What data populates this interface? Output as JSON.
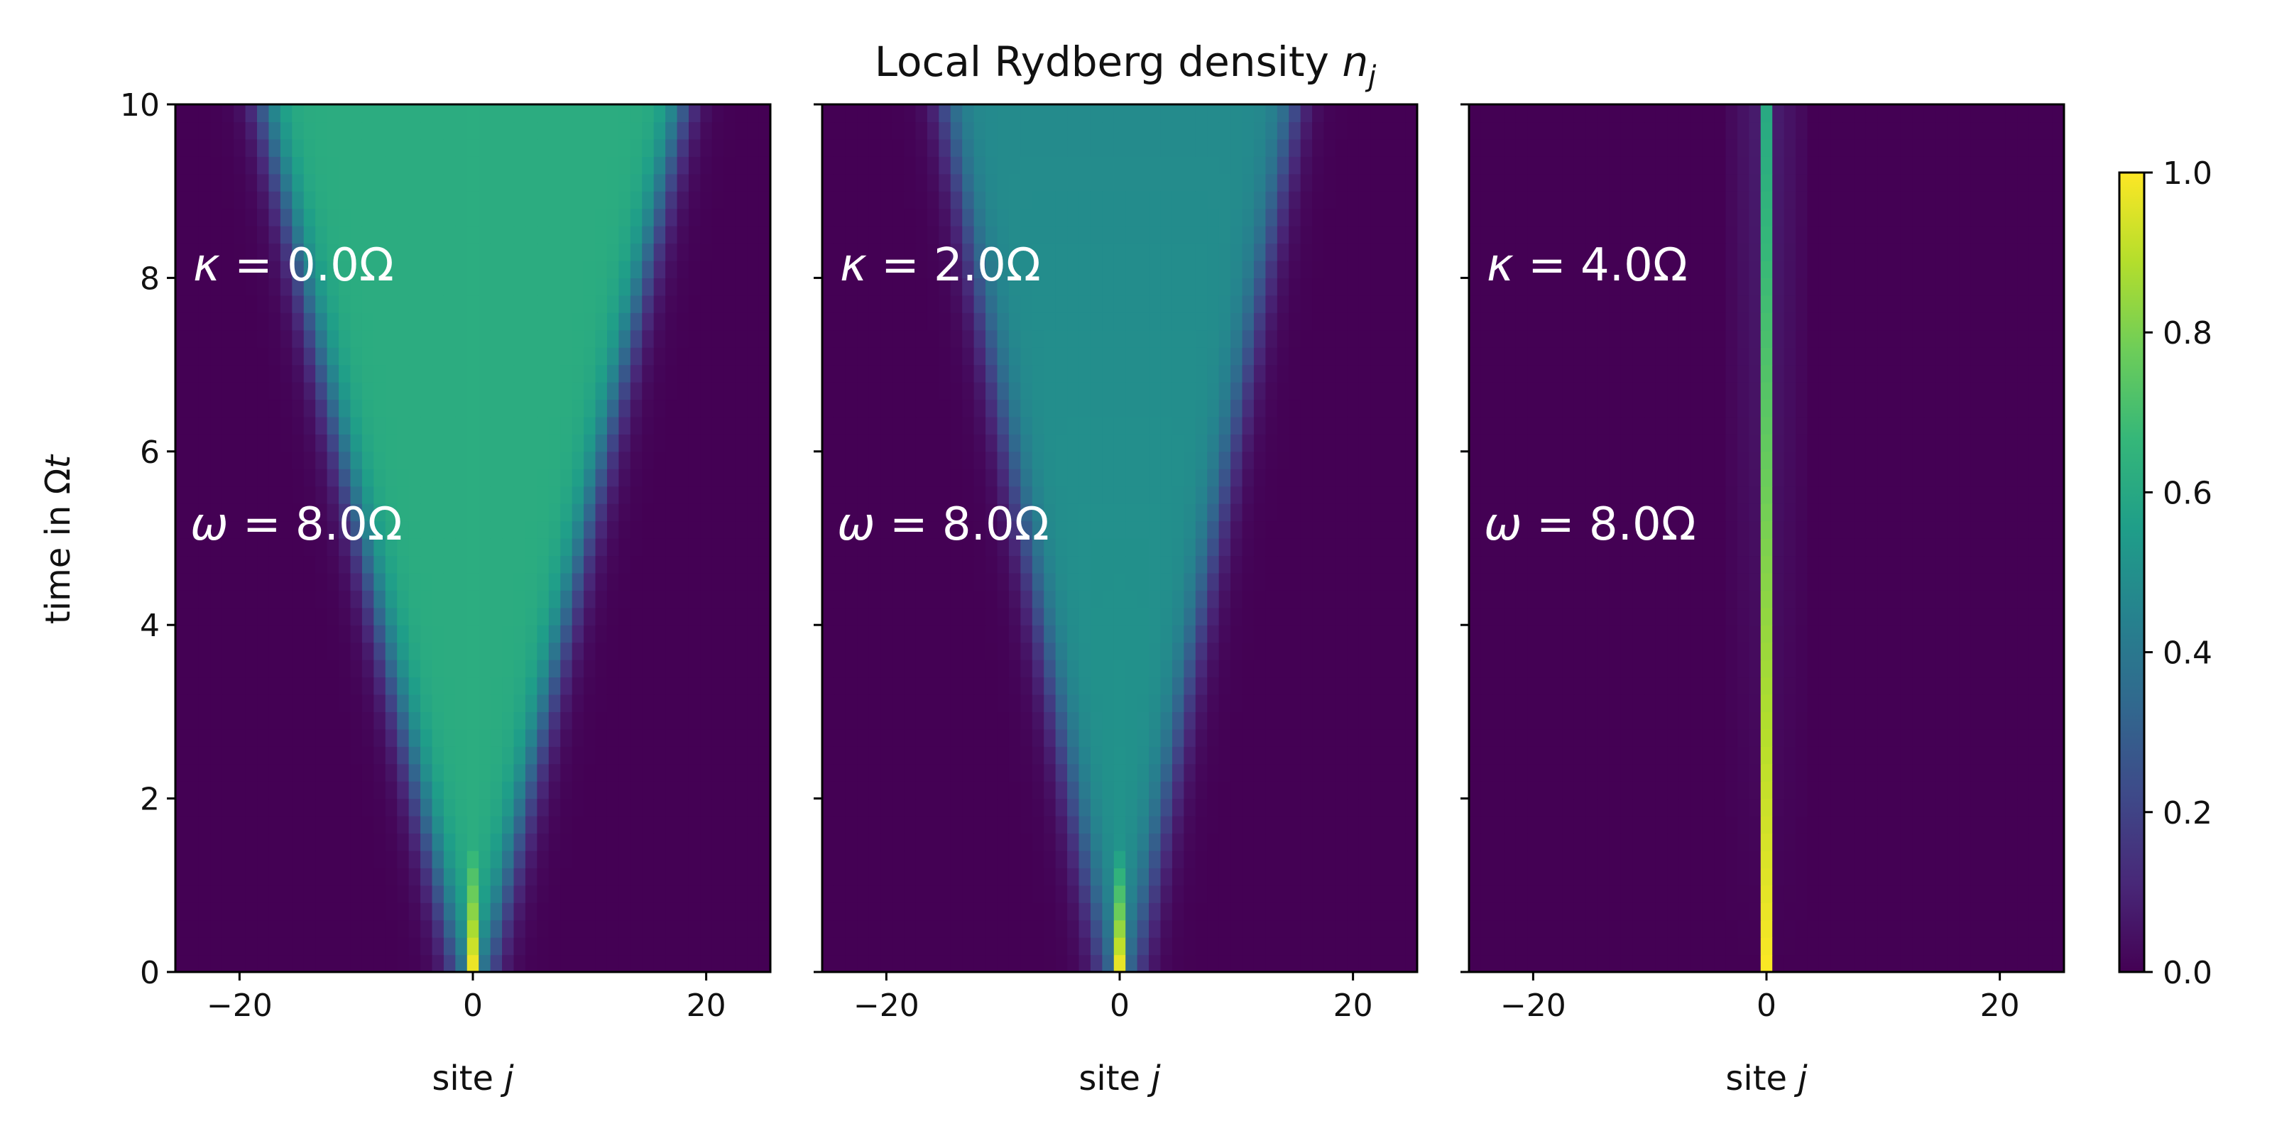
{
  "chart_data": {
    "type": "heatmap",
    "title": {
      "text": "Local Rydberg density ",
      "var": "n",
      "sub": "j"
    },
    "ylabel": {
      "text": "time in Ω",
      "var": "t"
    },
    "xlim": [
      -25.5,
      25.5
    ],
    "ylim": [
      0,
      10
    ],
    "xticks": [
      -20,
      0,
      20
    ],
    "xtick_labels": [
      "−20",
      "0",
      "20"
    ],
    "yticks": [
      0,
      2,
      4,
      6,
      8,
      10
    ],
    "ytick_labels": [
      "0",
      "2",
      "4",
      "6",
      "8",
      "10"
    ],
    "sites": {
      "min": -25,
      "max": 25
    },
    "time_steps": 50,
    "colormap": "viridis",
    "colorbar": {
      "range": [
        0.0,
        1.0
      ],
      "ticks": [
        0.0,
        0.2,
        0.4,
        0.6,
        0.8,
        1.0
      ],
      "tick_labels": [
        "0.0",
        "0.2",
        "0.4",
        "0.6",
        "0.8",
        "1.0"
      ]
    },
    "panels": [
      {
        "xlabel": {
          "text": "site ",
          "var": "j"
        },
        "kappa_label": {
          "sym": "κ",
          "rest": " = 0.0Ω"
        },
        "omega_label": {
          "sym": "ω",
          "rest": " = 8.0Ω"
        },
        "kappa": 0.0,
        "omega": 8.0,
        "cone_half_width_at_t10": 18,
        "plateau_density": 0.62,
        "center_density_t0": 1.0
      },
      {
        "xlabel": {
          "text": "site ",
          "var": "j"
        },
        "kappa_label": {
          "sym": "κ",
          "rest": " = 2.0Ω"
        },
        "omega_label": {
          "sym": "ω",
          "rest": " = 8.0Ω"
        },
        "kappa": 2.0,
        "omega": 8.0,
        "cone_half_width_at_t10": 15,
        "plateau_density": 0.52,
        "center_density_t0": 1.0
      },
      {
        "xlabel": {
          "text": "site ",
          "var": "j"
        },
        "kappa_label": {
          "sym": "κ",
          "rest": " = 4.0Ω"
        },
        "omega_label": {
          "sym": "ω",
          "rest": " = 8.0Ω"
        },
        "kappa": 4.0,
        "omega": 8.0,
        "cone_half_width_at_t10": 3,
        "center_density_t0": 1.0,
        "center_density_t10": 0.6
      }
    ]
  }
}
